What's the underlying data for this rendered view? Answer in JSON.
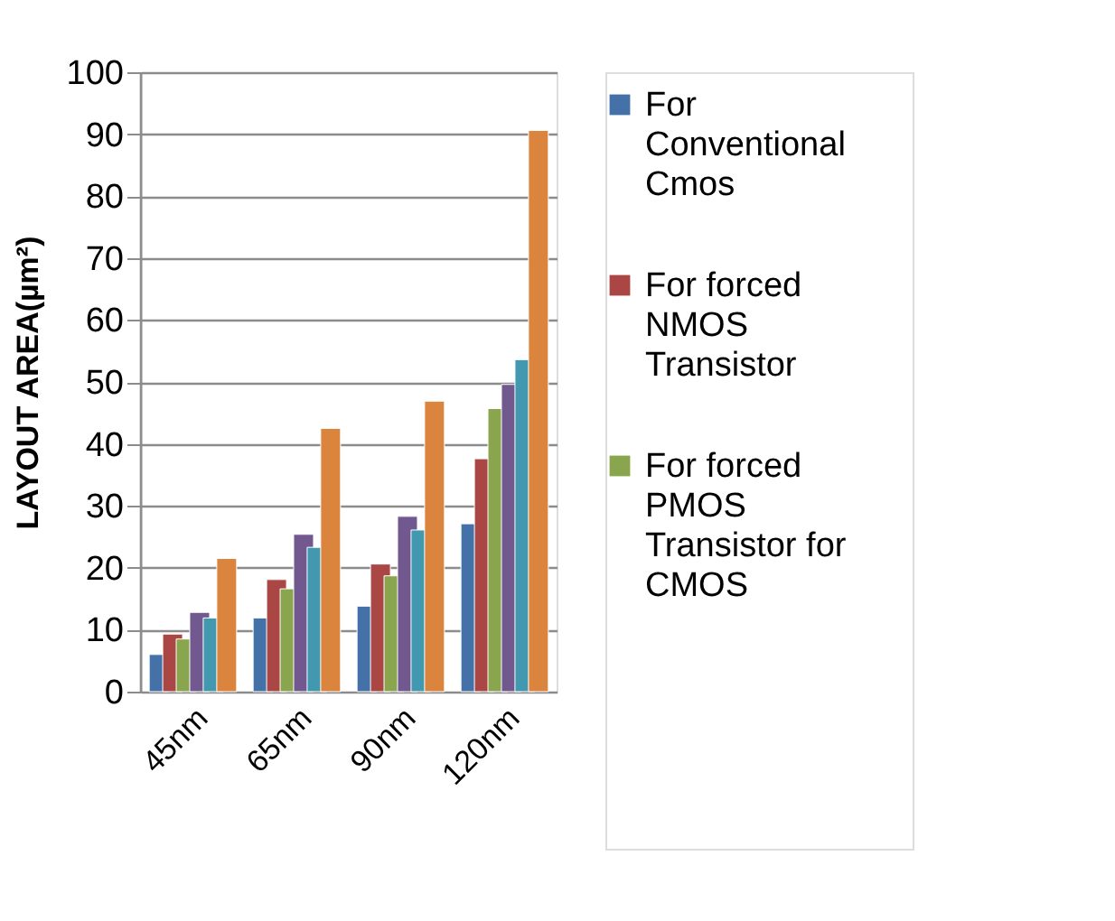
{
  "chart_data": {
    "type": "bar",
    "ylabel": "LAYOUT AREA(µm²)",
    "categories": [
      "45nm",
      "65nm",
      "90nm",
      "120nm"
    ],
    "series": [
      {
        "name": "For Conventional Cmos",
        "color": "#4472a8",
        "values": [
          6.0,
          11.9,
          13.8,
          27.1
        ]
      },
      {
        "name": "For forced NMOS Transistor",
        "color": "#aa4643",
        "values": [
          9.3,
          18.1,
          20.6,
          37.6
        ]
      },
      {
        "name": "For forced PMOS Transistor for CMOS",
        "color": "#89a54e",
        "values": [
          8.5,
          16.6,
          18.7,
          45.7
        ]
      },
      {
        "color": "#71588f",
        "values": [
          12.8,
          25.4,
          28.3,
          49.6
        ]
      },
      {
        "color": "#4198af",
        "values": [
          11.9,
          23.3,
          26.1,
          53.6
        ]
      },
      {
        "color": "#db843d",
        "values": [
          21.5,
          42.5,
          46.9,
          90.6
        ]
      }
    ],
    "ylim": [
      0,
      100
    ],
    "yticks": [
      0,
      10,
      20,
      30,
      40,
      50,
      60,
      70,
      80,
      90,
      100
    ],
    "grid": "y",
    "legend": "right"
  }
}
